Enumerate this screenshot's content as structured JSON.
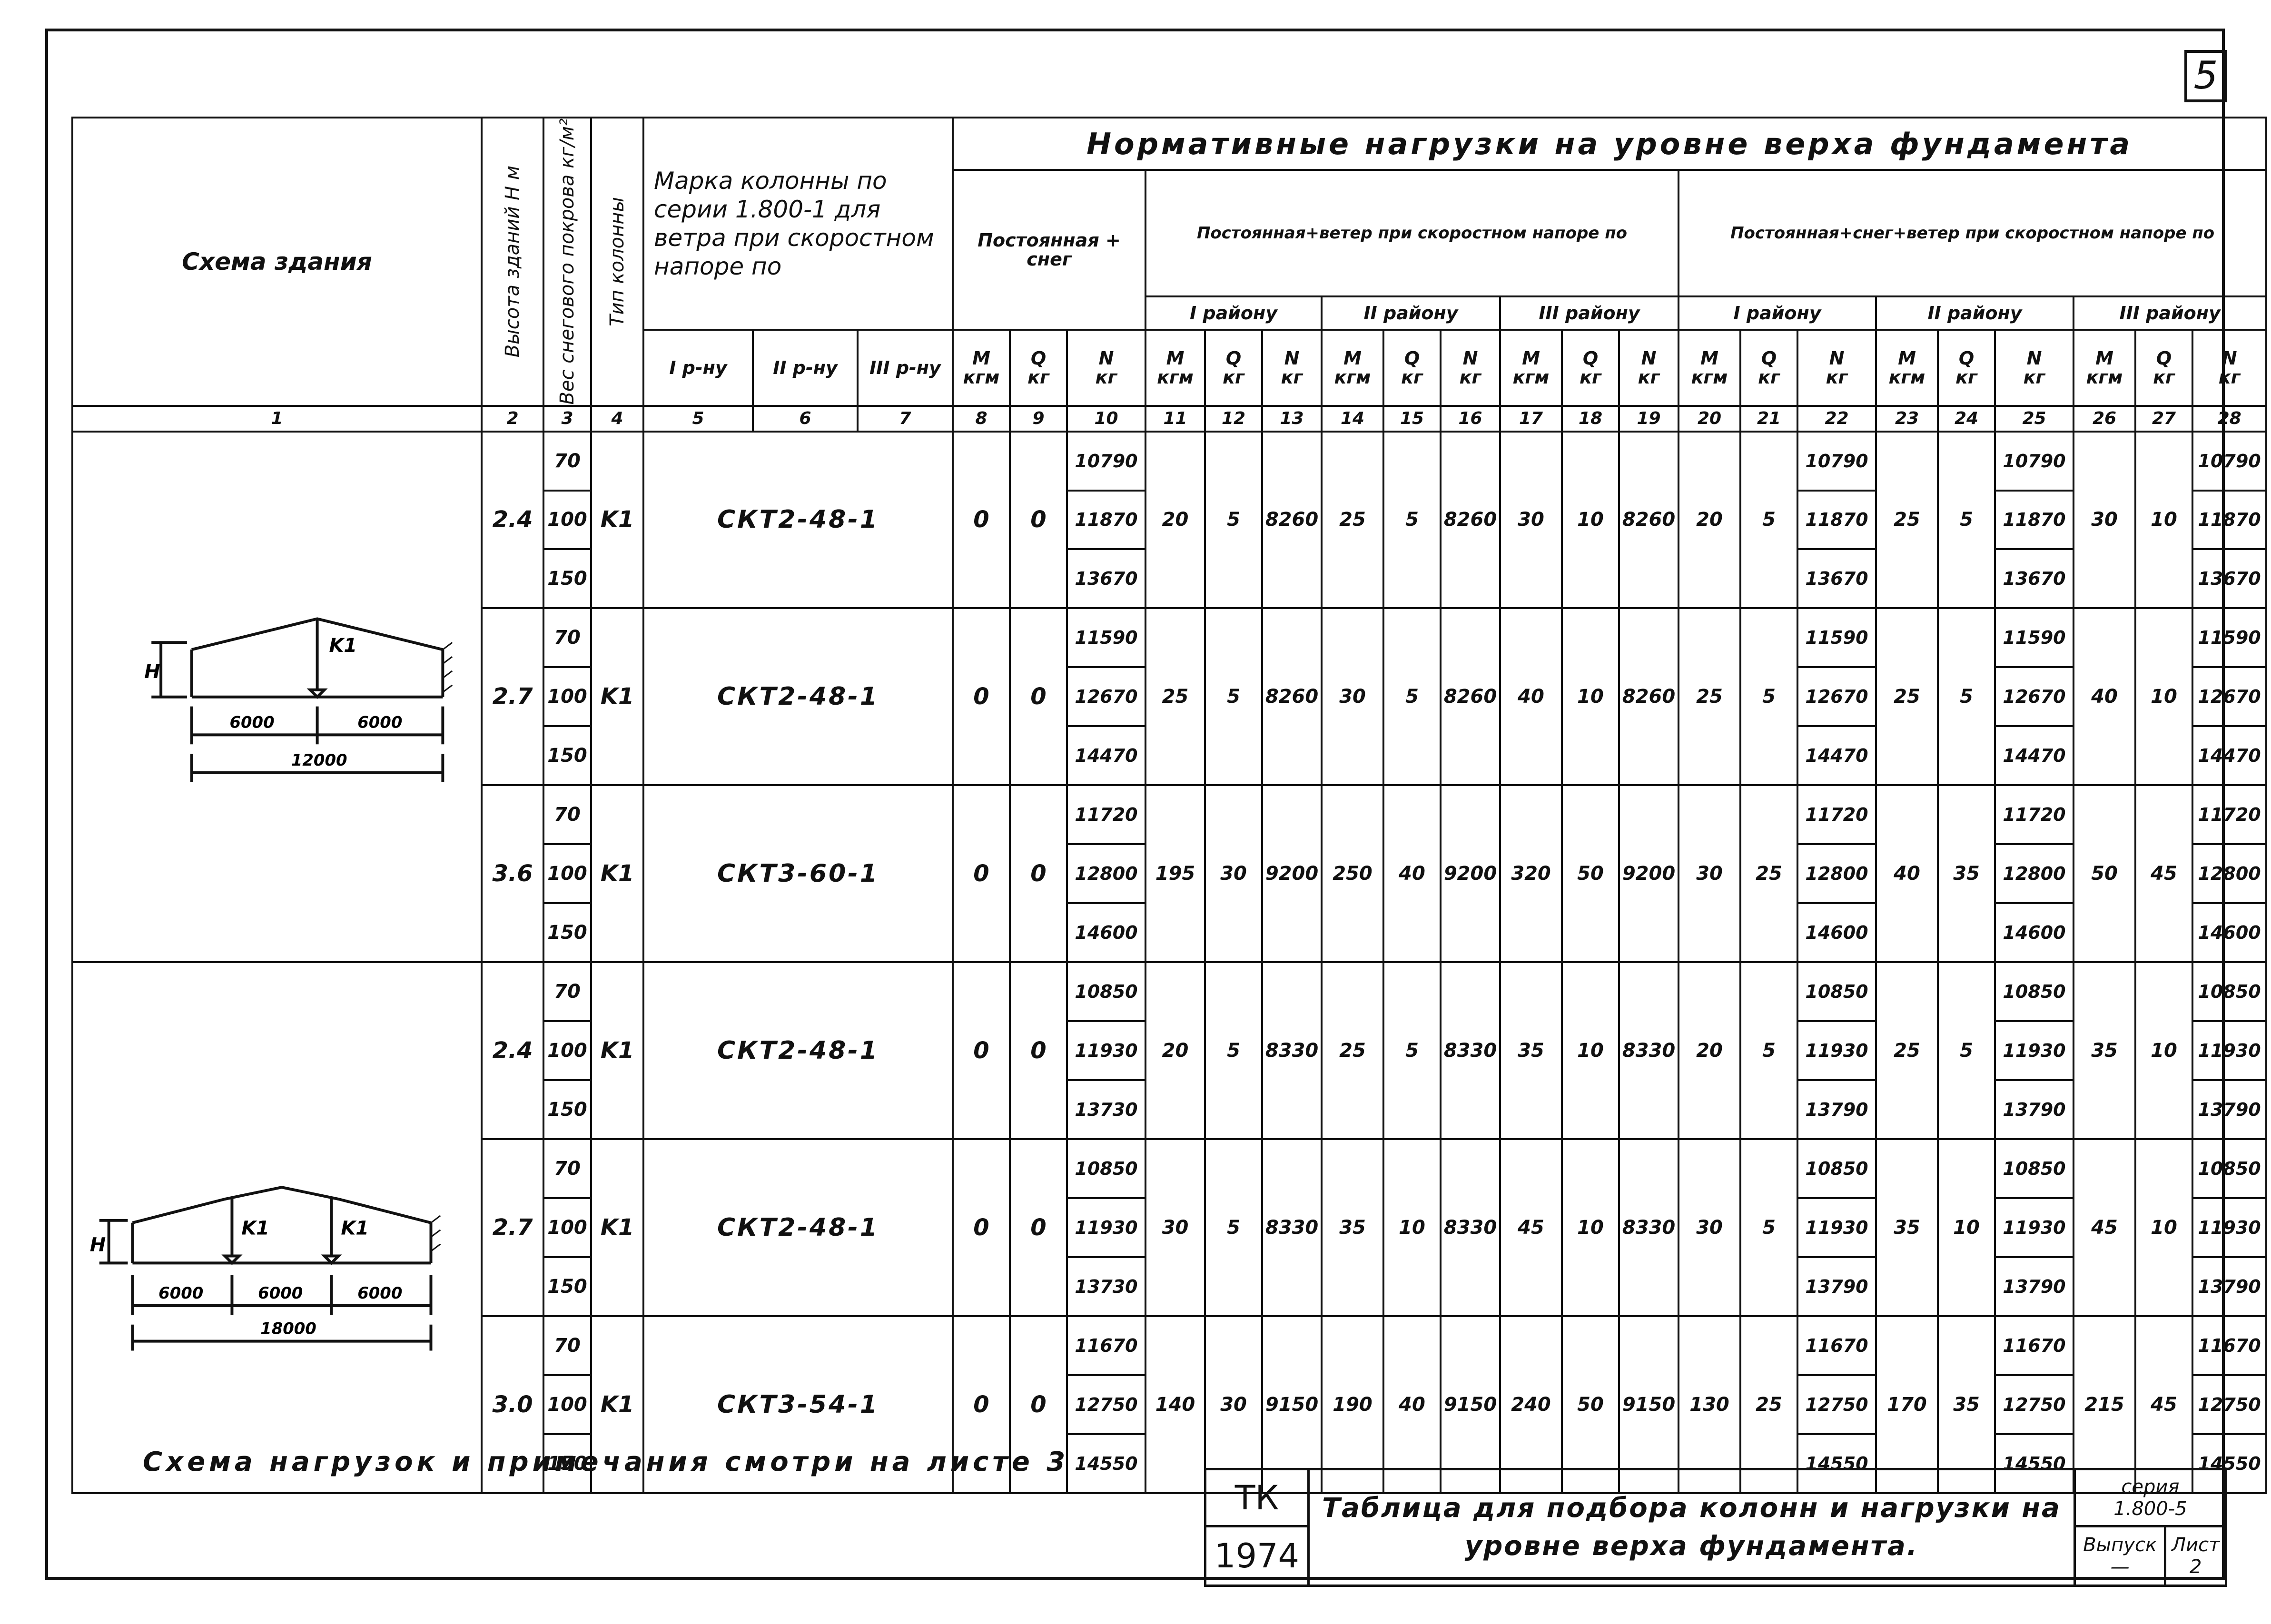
{
  "page_number": "5",
  "header": {
    "scheme": "Схема здания",
    "height": "Высота зданий H м",
    "snow": "Вес снегового покрова кг/м²",
    "type": "Тип колонны",
    "mark": "Марка колонны по серии 1.800-1 для ветра при скоростном напоре по",
    "mark_sub": [
      "I р-ну",
      "II р-ну",
      "III р-ну"
    ],
    "loads_title": "Нормативные нагрузки на уровне верха фундамента",
    "perm_snow": "Постоянная + снег",
    "perm_wind": "Постоянная+ветер при скоростном напоре по",
    "perm_snow_wind": "Постоянная+снег+ветер при скоростном напоре по",
    "regions": [
      "I району",
      "II району",
      "III району"
    ],
    "units_mqn": [
      [
        "M",
        "кгм"
      ],
      [
        "Q",
        "кг"
      ],
      [
        "N",
        "кг"
      ]
    ],
    "col_numbers": [
      "1",
      "2",
      "3",
      "4",
      "5",
      "6",
      "7",
      "8",
      "9",
      "10",
      "11",
      "12",
      "13",
      "14",
      "15",
      "16",
      "17",
      "18",
      "19",
      "20",
      "21",
      "22",
      "23",
      "24",
      "25",
      "26",
      "27",
      "28"
    ]
  },
  "scheme1": {
    "label_h": "H",
    "col": "K1",
    "spans": [
      "6000",
      "6000"
    ],
    "total": "12000"
  },
  "scheme2": {
    "label_h": "H",
    "cols": [
      "K1",
      "K1"
    ],
    "spans": [
      "6000",
      "6000",
      "6000"
    ],
    "total": "18000"
  },
  "rows": [
    {
      "h": "2.4",
      "snow": [
        "70",
        "100",
        "150"
      ],
      "type": "K1",
      "mark": "СКТ2-48-1",
      "m8": "0",
      "q9": "0",
      "n10": [
        "10790",
        "11870",
        "13670"
      ],
      "c11": "20",
      "c12": "5",
      "c13": "8260",
      "c14": "25",
      "c15": "5",
      "c16": "8260",
      "c17": "30",
      "c18": "10",
      "c19": "8260",
      "c20": "20",
      "c21": "5",
      "n22": [
        "10790",
        "11870",
        "13670"
      ],
      "c23": "25",
      "c24": "5",
      "n25": [
        "10790",
        "11870",
        "13670"
      ],
      "c26": "30",
      "c27": "10",
      "n28": [
        "10790",
        "11870",
        "13670"
      ]
    },
    {
      "h": "2.7",
      "snow": [
        "70",
        "100",
        "150"
      ],
      "type": "K1",
      "mark": "СКТ2-48-1",
      "m8": "0",
      "q9": "0",
      "n10": [
        "11590",
        "12670",
        "14470"
      ],
      "c11": "25",
      "c12": "5",
      "c13": "8260",
      "c14": "30",
      "c15": "5",
      "c16": "8260",
      "c17": "40",
      "c18": "10",
      "c19": "8260",
      "c20": "25",
      "c21": "5",
      "n22": [
        "11590",
        "12670",
        "14470"
      ],
      "c23": "25",
      "c24": "5",
      "n25": [
        "11590",
        "12670",
        "14470"
      ],
      "c26": "40",
      "c27": "10",
      "n28": [
        "11590",
        "12670",
        "14470"
      ]
    },
    {
      "h": "3.6",
      "snow": [
        "70",
        "100",
        "150"
      ],
      "type": "K1",
      "mark": "СКТ3-60-1",
      "m8": "0",
      "q9": "0",
      "n10": [
        "11720",
        "12800",
        "14600"
      ],
      "c11": "195",
      "c12": "30",
      "c13": "9200",
      "c14": "250",
      "c15": "40",
      "c16": "9200",
      "c17": "320",
      "c18": "50",
      "c19": "9200",
      "c20": "30",
      "c21": "25",
      "n22": [
        "11720",
        "12800",
        "14600"
      ],
      "c23": "40",
      "c24": "35",
      "n25": [
        "11720",
        "12800",
        "14600"
      ],
      "c26": "50",
      "c27": "45",
      "n28": [
        "11720",
        "12800",
        "14600"
      ]
    },
    {
      "h": "2.4",
      "snow": [
        "70",
        "100",
        "150"
      ],
      "type": "K1",
      "mark": "СКТ2-48-1",
      "m8": "0",
      "q9": "0",
      "n10": [
        "10850",
        "11930",
        "13730"
      ],
      "c11": "20",
      "c12": "5",
      "c13": "8330",
      "c14": "25",
      "c15": "5",
      "c16": "8330",
      "c17": "35",
      "c18": "10",
      "c19": "8330",
      "c20": "20",
      "c21": "5",
      "n22": [
        "10850",
        "11930",
        "13790"
      ],
      "c23": "25",
      "c24": "5",
      "n25": [
        "10850",
        "11930",
        "13790"
      ],
      "c26": "35",
      "c27": "10",
      "n28": [
        "10850",
        "11930",
        "13790"
      ]
    },
    {
      "h": "2.7",
      "snow": [
        "70",
        "100",
        "150"
      ],
      "type": "K1",
      "mark": "СКТ2-48-1",
      "m8": "0",
      "q9": "0",
      "n10": [
        "10850",
        "11930",
        "13730"
      ],
      "c11": "30",
      "c12": "5",
      "c13": "8330",
      "c14": "35",
      "c15": "10",
      "c16": "8330",
      "c17": "45",
      "c18": "10",
      "c19": "8330",
      "c20": "30",
      "c21": "5",
      "n22": [
        "10850",
        "11930",
        "13790"
      ],
      "c23": "35",
      "c24": "10",
      "n25": [
        "10850",
        "11930",
        "13790"
      ],
      "c26": "45",
      "c27": "10",
      "n28": [
        "10850",
        "11930",
        "13790"
      ]
    },
    {
      "h": "3.0",
      "snow": [
        "70",
        "100",
        "150"
      ],
      "type": "K1",
      "mark": "СКТ3-54-1",
      "m8": "0",
      "q9": "0",
      "n10": [
        "11670",
        "12750",
        "14550"
      ],
      "c11": "140",
      "c12": "30",
      "c13": "9150",
      "c14": "190",
      "c15": "40",
      "c16": "9150",
      "c17": "240",
      "c18": "50",
      "c19": "9150",
      "c20": "130",
      "c21": "25",
      "n22": [
        "11670",
        "12750",
        "14550"
      ],
      "c23": "170",
      "c24": "35",
      "n25": [
        "11670",
        "12750",
        "14550"
      ],
      "c26": "215",
      "c27": "45",
      "n28": [
        "11670",
        "12750",
        "14550"
      ]
    }
  ],
  "footer_note": "Схема нагрузок и примечания смотри на листе 3",
  "title_block": {
    "code_top": "ТК",
    "code_bottom": "1974",
    "title": "Таблица для подбора колонн и нагрузки на уровне верха фундамента.",
    "series_label": "серия",
    "series_value": "1.800-5",
    "issue_label": "Выпуск",
    "issue_value": "—",
    "sheet_label": "Лист",
    "sheet_value": "2"
  }
}
